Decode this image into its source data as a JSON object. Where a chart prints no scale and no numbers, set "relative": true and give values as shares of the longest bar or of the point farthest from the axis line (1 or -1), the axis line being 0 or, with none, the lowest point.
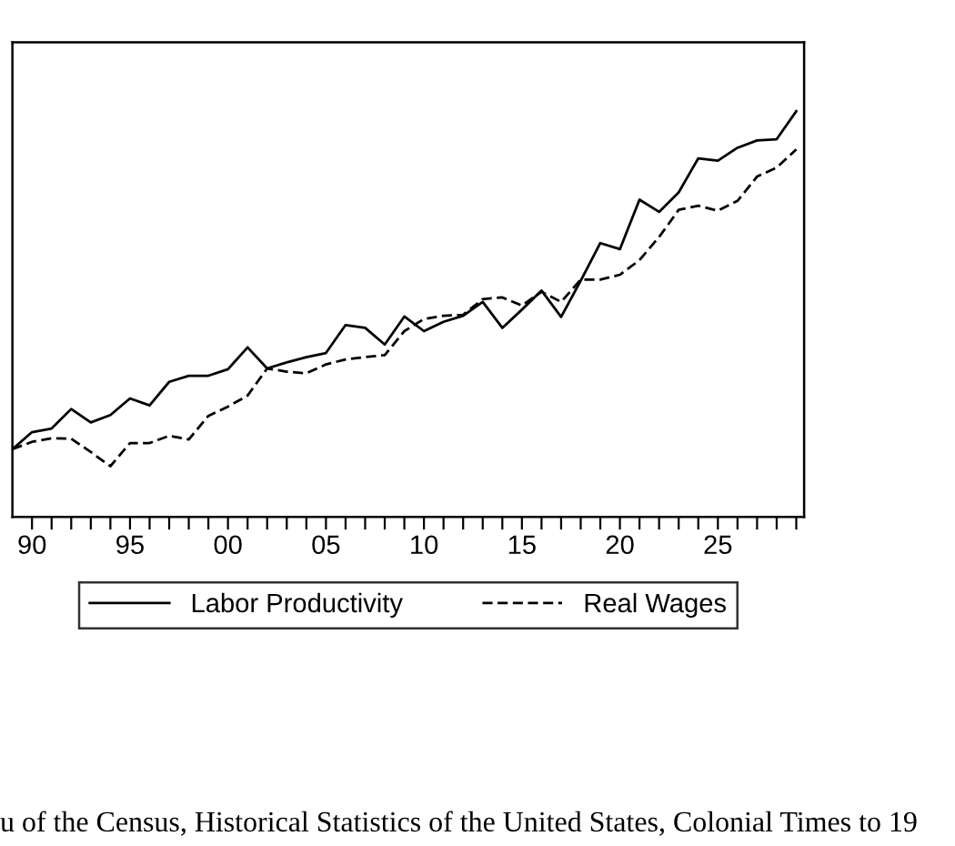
{
  "chart_data": {
    "type": "line",
    "relative": true,
    "tick_labels": "x",
    "grid": false,
    "legend": "bottom",
    "marker": "none",
    "x": [
      1889,
      1890,
      1891,
      1892,
      1893,
      1894,
      1895,
      1896,
      1897,
      1898,
      1899,
      1900,
      1901,
      1902,
      1903,
      1904,
      1905,
      1906,
      1907,
      1908,
      1909,
      1910,
      1911,
      1912,
      1913,
      1914,
      1915,
      1916,
      1917,
      1918,
      1919,
      1920,
      1921,
      1922,
      1923,
      1924,
      1925,
      1926,
      1927,
      1928,
      1929
    ],
    "xlim": [
      1889,
      1929.4
    ],
    "xticks": [
      {
        "value": 1890,
        "label": "90"
      },
      {
        "value": 1891,
        "label": null
      },
      {
        "value": 1892,
        "label": null
      },
      {
        "value": 1893,
        "label": null
      },
      {
        "value": 1894,
        "label": null
      },
      {
        "value": 1895,
        "label": "95"
      },
      {
        "value": 1896,
        "label": null
      },
      {
        "value": 1897,
        "label": null
      },
      {
        "value": 1898,
        "label": null
      },
      {
        "value": 1899,
        "label": null
      },
      {
        "value": 1900,
        "label": "00"
      },
      {
        "value": 1901,
        "label": null
      },
      {
        "value": 1902,
        "label": null
      },
      {
        "value": 1903,
        "label": null
      },
      {
        "value": 1904,
        "label": null
      },
      {
        "value": 1905,
        "label": "05"
      },
      {
        "value": 1906,
        "label": null
      },
      {
        "value": 1907,
        "label": null
      },
      {
        "value": 1908,
        "label": null
      },
      {
        "value": 1909,
        "label": null
      },
      {
        "value": 1910,
        "label": "10"
      },
      {
        "value": 1911,
        "label": null
      },
      {
        "value": 1912,
        "label": null
      },
      {
        "value": 1913,
        "label": null
      },
      {
        "value": 1914,
        "label": null
      },
      {
        "value": 1915,
        "label": "15"
      },
      {
        "value": 1916,
        "label": null
      },
      {
        "value": 1917,
        "label": null
      },
      {
        "value": 1918,
        "label": null
      },
      {
        "value": 1919,
        "label": null
      },
      {
        "value": 1920,
        "label": "20"
      },
      {
        "value": 1921,
        "label": null
      },
      {
        "value": 1922,
        "label": null
      },
      {
        "value": 1923,
        "label": null
      },
      {
        "value": 1924,
        "label": null
      },
      {
        "value": 1925,
        "label": "25"
      },
      {
        "value": 1926,
        "label": null
      },
      {
        "value": 1927,
        "label": null
      },
      {
        "value": 1928,
        "label": null
      },
      {
        "value": 1929,
        "label": null
      }
    ],
    "series": [
      {
        "name": "Labor Productivity",
        "color": "#000000",
        "line_style": "solid",
        "values": [
          0.167,
          0.209,
          0.218,
          0.266,
          0.233,
          0.251,
          0.292,
          0.275,
          0.333,
          0.348,
          0.348,
          0.364,
          0.418,
          0.366,
          0.381,
          0.394,
          0.404,
          0.473,
          0.466,
          0.425,
          0.494,
          0.458,
          0.481,
          0.496,
          0.53,
          0.466,
          0.511,
          0.558,
          0.493,
          0.582,
          0.675,
          0.66,
          0.782,
          0.752,
          0.8,
          0.884,
          0.878,
          0.91,
          0.928,
          0.931,
          1
        ]
      },
      {
        "name": "Real Wages",
        "color": "#000000",
        "line_style": "dashed",
        "values": [
          0.167,
          0.185,
          0.194,
          0.193,
          0.16,
          0.125,
          0.182,
          0.182,
          0.2,
          0.191,
          0.249,
          0.272,
          0.299,
          0.366,
          0.358,
          0.354,
          0.376,
          0.388,
          0.394,
          0.399,
          0.458,
          0.488,
          0.496,
          0.498,
          0.537,
          0.541,
          0.521,
          0.555,
          0.53,
          0.585,
          0.585,
          0.597,
          0.633,
          0.69,
          0.757,
          0.767,
          0.755,
          0.779,
          0.839,
          0.861,
          0.906
        ]
      }
    ],
    "annotations": [
      "u of the Census, Historical Statistics of the United States, Colonial Times to 19"
    ]
  }
}
